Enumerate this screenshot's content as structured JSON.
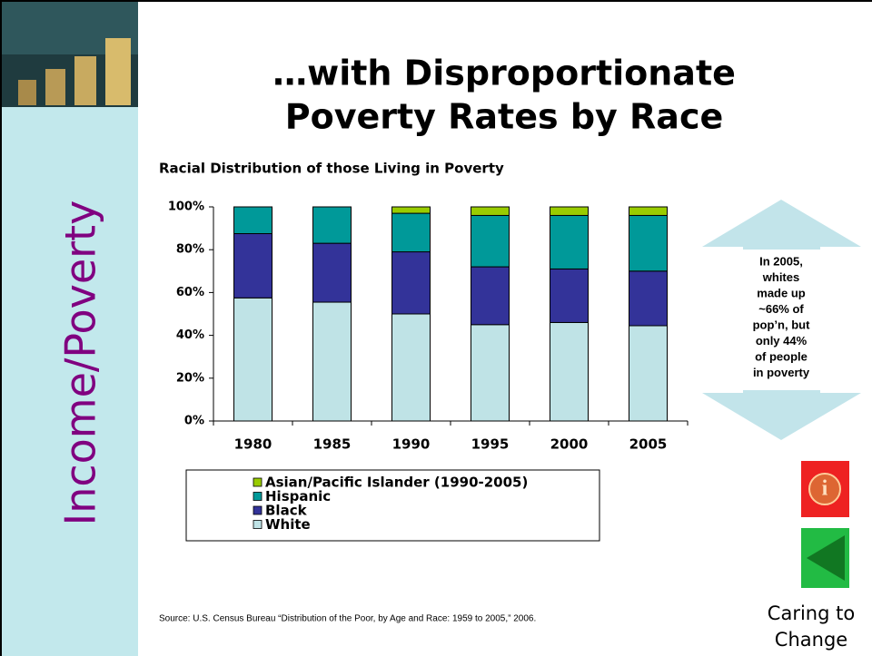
{
  "slide": {
    "sidebar_label": "Income/Poverty",
    "title_lines": [
      "…with Disproportionate",
      "Poverty Rates by Race"
    ],
    "callout_lines": [
      "In 2005,",
      "whites",
      "made up",
      "~66% of",
      "pop’n, but",
      "only 44%",
      "of people",
      "in poverty"
    ],
    "source": "Source: U.S. Census Bureau “Distribution of the Poor, by Age and Race: 1959 to 2005,” 2006.",
    "footer_lines": [
      "Caring to",
      "Change"
    ]
  },
  "chart_data": {
    "type": "stacked_bar",
    "title": "Racial Distribution of those Living in Poverty",
    "categories": [
      "1980",
      "1985",
      "1990",
      "1995",
      "2000",
      "2005"
    ],
    "series": [
      {
        "name": "White",
        "color": "#bfe3e6",
        "values": [
          57.5,
          55.5,
          50,
          45,
          46,
          44.5
        ]
      },
      {
        "name": "Black",
        "color": "#333399",
        "values": [
          30,
          27.5,
          29,
          27,
          25,
          25.5
        ]
      },
      {
        "name": "Hispanic",
        "color": "#009999",
        "values": [
          12.5,
          17,
          18,
          24,
          25,
          26
        ]
      },
      {
        "name": "Asian/Pacific Islander (1990-2005)",
        "color": "#99cc00",
        "values": [
          null,
          null,
          3,
          4,
          4,
          4
        ]
      }
    ],
    "ylim": [
      0,
      100
    ],
    "yticks": [
      {
        "value": 0,
        "label": "0%"
      },
      {
        "value": 20,
        "label": "20%"
      },
      {
        "value": 40,
        "label": "40%"
      },
      {
        "value": 60,
        "label": "60%"
      },
      {
        "value": 80,
        "label": "80%"
      },
      {
        "value": 100,
        "label": "100%"
      }
    ],
    "grid": false
  }
}
